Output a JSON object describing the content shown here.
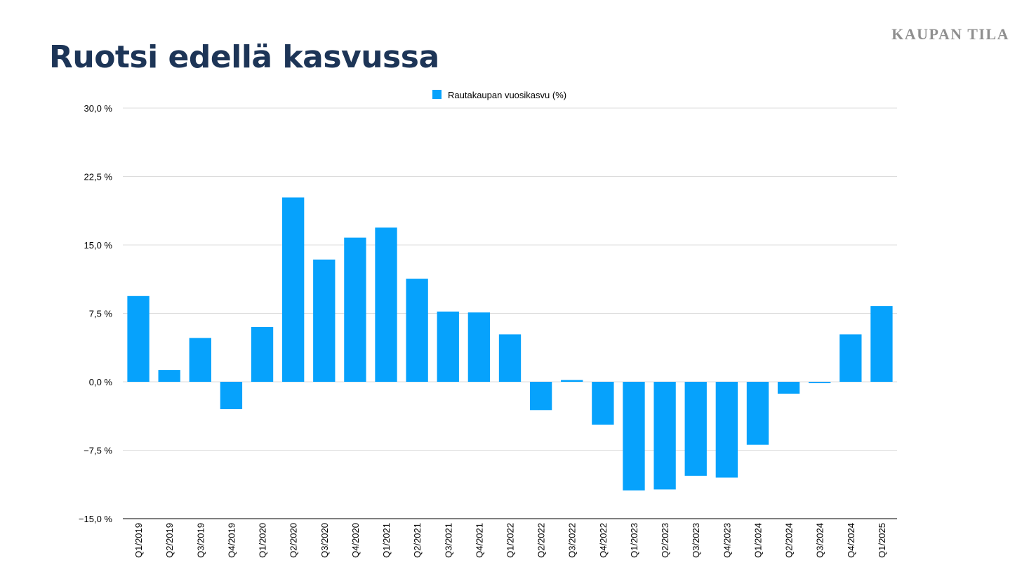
{
  "brand": "KAUPAN TILA",
  "title": "Ruotsi edellä kasvussa",
  "chart_data": {
    "type": "bar",
    "title": "Ruotsi edellä kasvussa",
    "xlabel": "",
    "ylabel": "",
    "categories": [
      "Q1/2019",
      "Q2/2019",
      "Q3/2019",
      "Q4/2019",
      "Q1/2020",
      "Q2/2020",
      "Q3/2020",
      "Q4/2020",
      "Q1/2021",
      "Q2/2021",
      "Q3/2021",
      "Q4/2021",
      "Q1/2022",
      "Q2/2022",
      "Q3/2022",
      "Q4/2022",
      "Q1/2023",
      "Q2/2023",
      "Q3/2023",
      "Q4/2023",
      "Q1/2024",
      "Q2/2024",
      "Q3/2024",
      "Q4/2024",
      "Q1/2025"
    ],
    "series": [
      {
        "name": "Rautakaupan vuosikasvu (%)",
        "color": "#06a2fc",
        "values": [
          9.4,
          1.3,
          4.8,
          -3.0,
          6.0,
          20.2,
          13.4,
          15.8,
          16.9,
          11.3,
          7.7,
          7.6,
          5.2,
          -3.1,
          0.2,
          -4.7,
          -11.9,
          -11.8,
          -10.3,
          -10.5,
          -6.9,
          -1.3,
          -0.15,
          5.2,
          8.3
        ]
      }
    ],
    "ylim": [
      -15,
      30
    ],
    "yticks": [
      30,
      22.5,
      15,
      7.5,
      0,
      -7.5,
      -15
    ],
    "ytick_labels": [
      "30,0 %",
      "22,5 %",
      "15,0 %",
      "7,5 %",
      "0,0 %",
      "−7,5 %",
      "−15,0 %"
    ],
    "grid": true,
    "legend_position": "top-center"
  }
}
